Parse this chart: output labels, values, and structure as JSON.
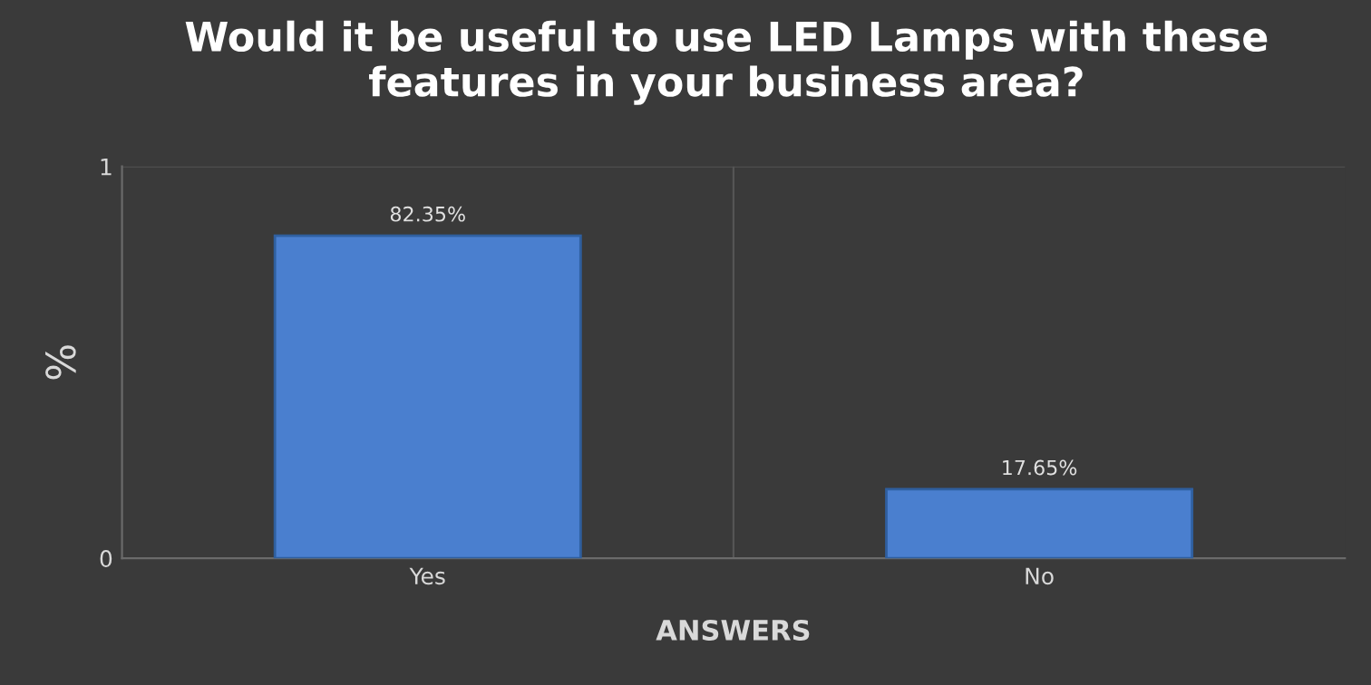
{
  "chart_data": {
    "type": "bar",
    "title": "Would it be useful to use LED Lamps with these features in your business area?",
    "xlabel": "ANSWERS",
    "ylabel": "%",
    "categories": [
      "Yes",
      "No"
    ],
    "values": [
      0.8235,
      0.1765
    ],
    "value_labels": [
      "82.35%",
      "17.65%"
    ],
    "color": "#4a7fcf",
    "ylim": [
      0,
      1
    ],
    "yticks": [
      0,
      1
    ],
    "grid": true
  }
}
